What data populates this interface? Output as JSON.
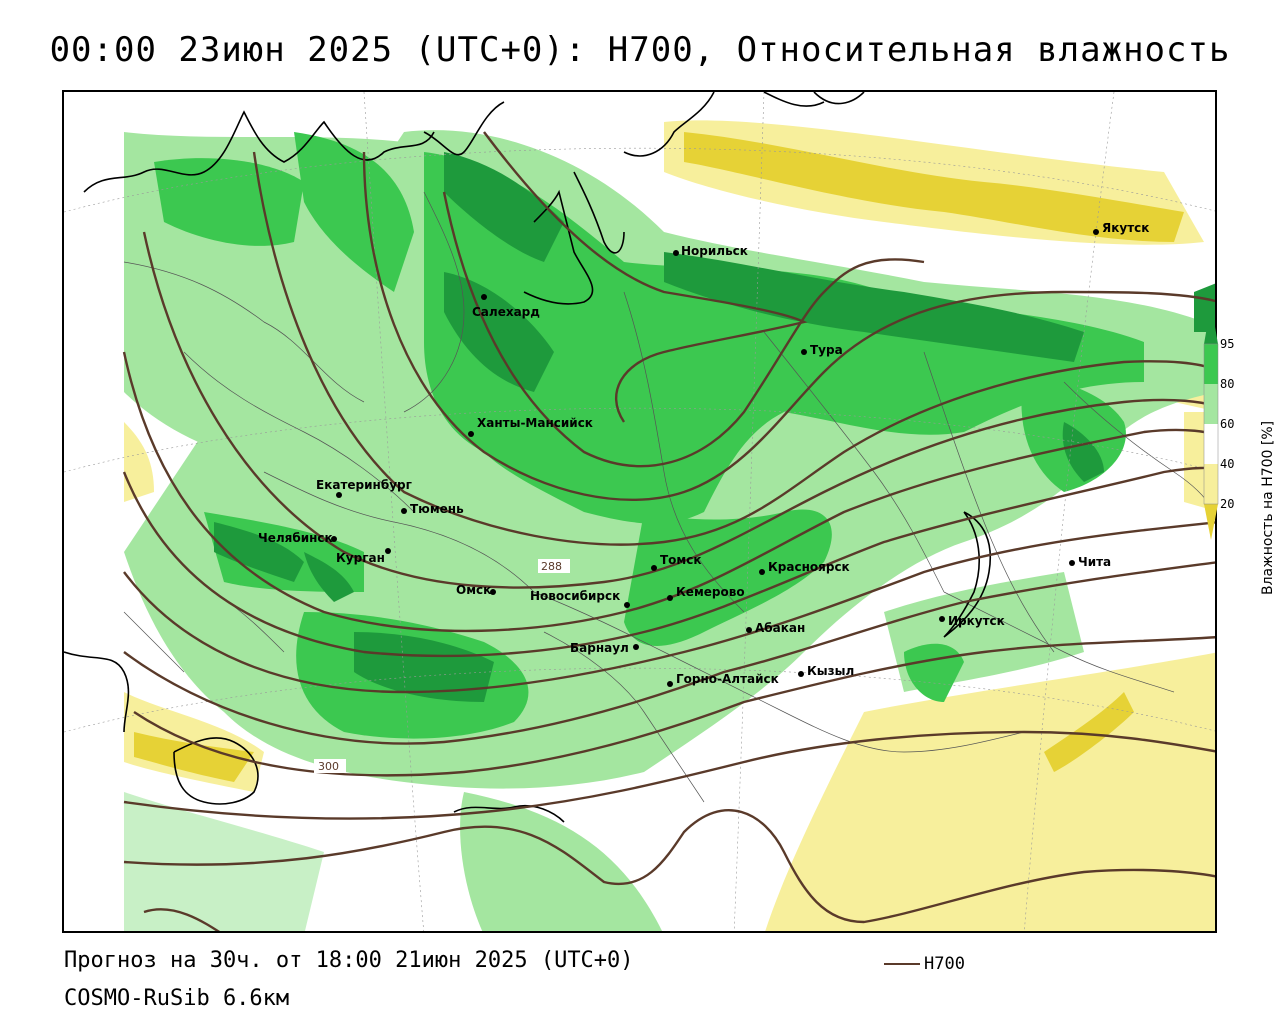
{
  "title": "00:00 23июн 2025 (UTC+0): H700, Относительная влажность",
  "forecast": "Прогноз на 30ч. от 18:00 21июн 2025 (UTC+0)",
  "model": "COSMO-RuSib 6.6км",
  "legend": {
    "h700_label": "H700",
    "h700_color": "#5a3a2a"
  },
  "colorbar": {
    "label": "Влажность на H700 [%]",
    "ticks": [
      "95",
      "80",
      "60",
      "40",
      "20"
    ],
    "colors": {
      "dark": "#1e9a3c",
      "mid": "#3cc850",
      "light": "#a4e6a0",
      "white": "#ffffff",
      "pale_yellow": "#f7ef9c",
      "yellow": "#e6d236"
    }
  },
  "contours": {
    "label_288": "288",
    "label_300": "300"
  },
  "cities": [
    {
      "name": "Якутск"
    },
    {
      "name": "Норильск"
    },
    {
      "name": "Салехард"
    },
    {
      "name": "Тура"
    },
    {
      "name": "Ханты-Мансийск"
    },
    {
      "name": "Екатеринбург"
    },
    {
      "name": "Тюмень"
    },
    {
      "name": "Челябинск"
    },
    {
      "name": "Курган"
    },
    {
      "name": "Омск"
    },
    {
      "name": "Новосибирск"
    },
    {
      "name": "Томск"
    },
    {
      "name": "Кемерово"
    },
    {
      "name": "Красноярск"
    },
    {
      "name": "Барнаул"
    },
    {
      "name": "Абакан"
    },
    {
      "name": "Горно-Алтайск"
    },
    {
      "name": "Кызыл"
    },
    {
      "name": "Иркутск"
    },
    {
      "name": "Чита"
    }
  ]
}
